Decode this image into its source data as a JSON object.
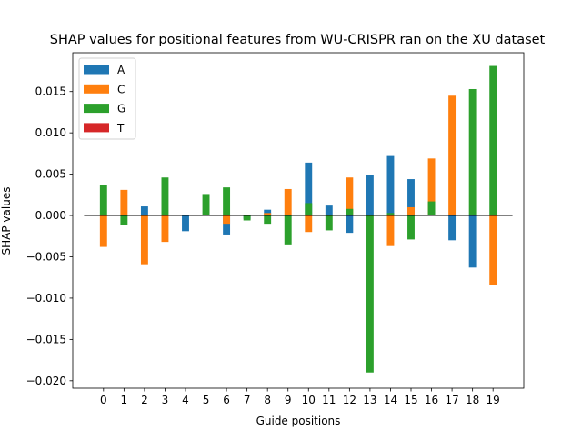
{
  "chart_data": {
    "type": "bar",
    "title": "SHAP values for positional features from WU-CRISPR ran on the XU dataset",
    "xlabel": "Guide positions",
    "ylabel": "SHAP values",
    "categories": [
      "0",
      "1",
      "2",
      "3",
      "4",
      "5",
      "6",
      "7",
      "8",
      "9",
      "10",
      "11",
      "12",
      "13",
      "14",
      "15",
      "16",
      "17",
      "18",
      "19"
    ],
    "ylim": [
      -0.0209,
      0.0197
    ],
    "yticks": [
      -0.02,
      -0.015,
      -0.01,
      -0.005,
      0.0,
      0.005,
      0.01,
      0.015
    ],
    "ytick_labels": [
      "−0.020",
      "−0.015",
      "−0.010",
      "−0.005",
      "0.000",
      "0.005",
      "0.010",
      "0.015"
    ],
    "grid": false,
    "legend_position": "top-left",
    "zero_line": true,
    "series": [
      {
        "name": "A",
        "color": "#1f77b4",
        "values": [
          0.0,
          0.0,
          0.0011,
          0.0,
          -0.0019,
          0.0,
          -0.0023,
          -0.0004,
          0.0007,
          0.0,
          0.0064,
          0.0012,
          -0.0021,
          0.0049,
          0.0072,
          0.0044,
          0.0,
          -0.003,
          -0.0063,
          0.0
        ]
      },
      {
        "name": "C",
        "color": "#ff7f0e",
        "values": [
          -0.0038,
          0.0031,
          -0.0059,
          -0.0032,
          0.0,
          0.0,
          -0.001,
          0.0,
          0.0003,
          0.0032,
          -0.002,
          0.0,
          0.0046,
          0.0,
          -0.0037,
          0.001,
          0.0069,
          0.0145,
          0.0,
          -0.0084
        ]
      },
      {
        "name": "G",
        "color": "#2ca02c",
        "values": [
          0.0037,
          -0.0012,
          0.0,
          0.0046,
          0.0,
          0.0026,
          0.0034,
          -0.0006,
          -0.001,
          -0.0035,
          0.0015,
          -0.0018,
          0.0008,
          -0.019,
          0.0003,
          -0.0029,
          0.0017,
          0.0,
          0.0153,
          0.0181
        ]
      },
      {
        "name": "T",
        "color": "#d62728",
        "values": [
          0.0,
          0.0,
          0.0,
          0.0,
          0.0,
          0.0,
          0.0,
          0.0,
          0.0,
          0.0,
          0.0,
          0.0,
          0.0,
          0.0,
          0.0,
          0.0,
          0.0,
          0.0,
          0.0,
          0.0
        ]
      }
    ]
  }
}
